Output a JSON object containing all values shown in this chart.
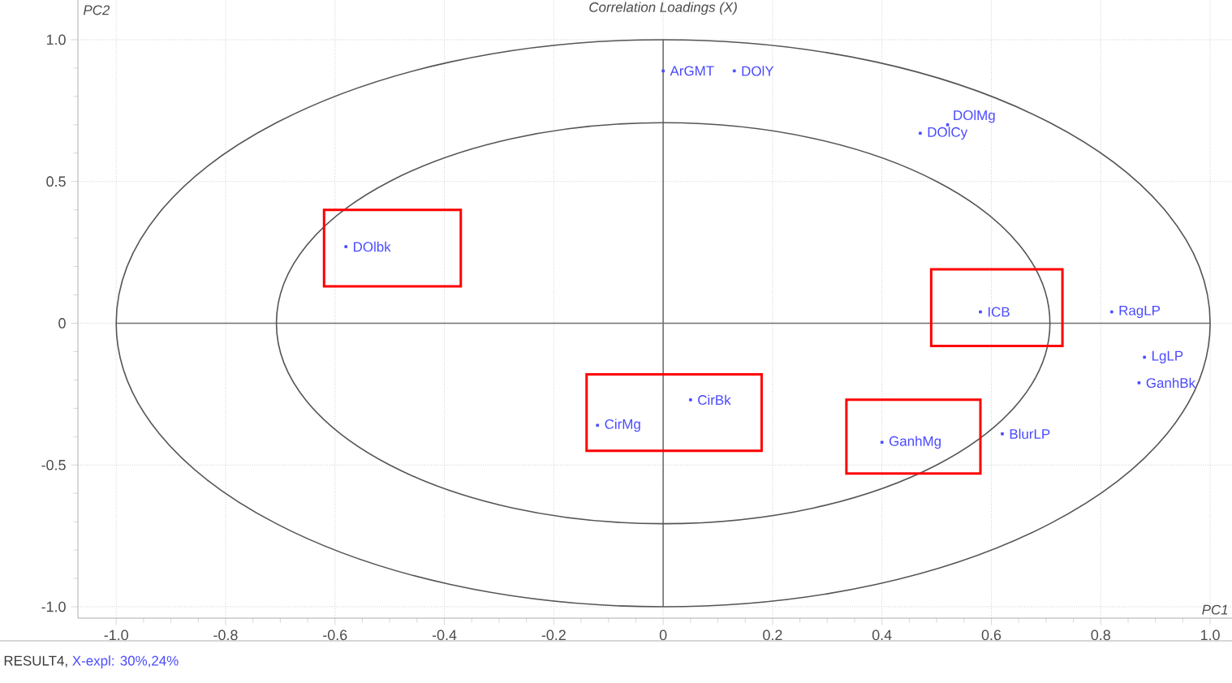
{
  "chart_data": {
    "type": "scatter",
    "title": "Correlation Loadings (X)",
    "xlabel": "PC1",
    "ylabel": "PC2",
    "annotations": [
      "RESULT4,",
      "X-expl: 30%,24%"
    ],
    "xlim": [
      -1.07,
      1.04
    ],
    "ylim": [
      -1.04,
      1.14
    ],
    "xticks": [
      {
        "value": -1,
        "label": "-1.0"
      },
      -0.8,
      -0.6,
      -0.4,
      -0.2,
      0,
      0.2,
      0.4,
      0.6,
      0.8,
      {
        "value": 1,
        "label": "1.0"
      }
    ],
    "yticks": [
      {
        "value": -1,
        "label": "-1.0"
      },
      -0.5,
      0,
      0.5,
      {
        "value": 1,
        "label": "1.0"
      }
    ],
    "grid": true,
    "marker": "square",
    "series": [
      {
        "name": "DOlbk",
        "color": "#4a4aff",
        "x": [
          -0.58
        ],
        "values": [
          0.27
        ]
      },
      {
        "name": "ArGMT",
        "color": "#4a4aff",
        "x": [
          0.0
        ],
        "values": [
          0.89
        ]
      },
      {
        "name": "DOlY",
        "color": "#4a4aff",
        "x": [
          0.13
        ],
        "values": [
          0.89
        ]
      },
      {
        "name": "DOlCy",
        "color": "#4a4aff",
        "x": [
          0.47
        ],
        "values": [
          0.67
        ]
      },
      {
        "name": "DOlMg",
        "color": "#4a4aff",
        "x": [
          0.52
        ],
        "values": [
          0.7
        ]
      },
      {
        "name": "ICB",
        "color": "#4a4aff",
        "x": [
          0.58
        ],
        "values": [
          0.04
        ]
      },
      {
        "name": "RagLP",
        "color": "#4a4aff",
        "x": [
          0.82
        ],
        "values": [
          0.04
        ]
      },
      {
        "name": "LgLP",
        "color": "#4a4aff",
        "x": [
          0.88
        ],
        "values": [
          -0.12
        ]
      },
      {
        "name": "GanhBk",
        "color": "#4a4aff",
        "x": [
          0.87
        ],
        "values": [
          -0.21
        ]
      },
      {
        "name": "CirBk",
        "color": "#4a4aff",
        "x": [
          0.05
        ],
        "values": [
          -0.27
        ]
      },
      {
        "name": "CirMg",
        "color": "#4a4aff",
        "x": [
          -0.12
        ],
        "values": [
          -0.36
        ]
      },
      {
        "name": "GanhMg",
        "color": "#4a4aff",
        "x": [
          0.4
        ],
        "values": [
          -0.42
        ]
      },
      {
        "name": "BlurLP",
        "color": "#4a4aff",
        "x": [
          0.62
        ],
        "values": [
          -0.39
        ]
      }
    ]
  }
}
